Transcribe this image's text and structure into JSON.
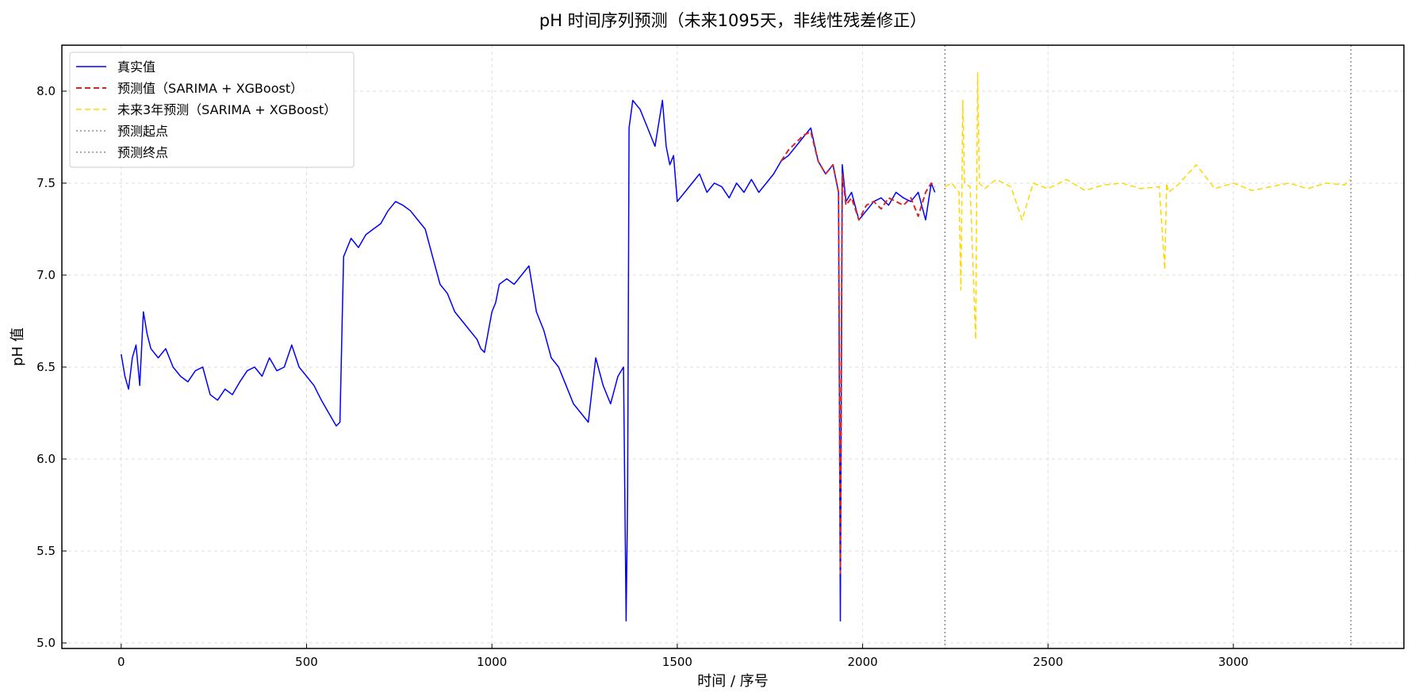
{
  "chart_data": {
    "type": "line",
    "title": "pH 时间序列预测（未来1095天，非线性残差修正）",
    "xlabel": "时间 / 序号",
    "ylabel": "pH 值",
    "xlim": [
      -160,
      3460
    ],
    "ylim": [
      4.97,
      8.25
    ],
    "xticks": [
      0,
      500,
      1000,
      1500,
      2000,
      2500,
      3000
    ],
    "yticks": [
      5.0,
      5.5,
      6.0,
      6.5,
      7.0,
      7.5,
      8.0
    ],
    "xtick_labels": [
      "0",
      "500",
      "1000",
      "1500",
      "2000",
      "2500",
      "3000"
    ],
    "ytick_labels": [
      "5.0",
      "5.5",
      "6.0",
      "6.5",
      "7.0",
      "7.5",
      "8.0"
    ],
    "grid": true,
    "legend_position": "upper-left",
    "series": [
      {
        "name": "真实值",
        "color": "#0000ff",
        "style": "solid",
        "x": [
          0,
          10,
          20,
          30,
          40,
          50,
          60,
          70,
          80,
          100,
          120,
          140,
          160,
          180,
          200,
          220,
          240,
          260,
          280,
          300,
          320,
          340,
          360,
          380,
          400,
          420,
          440,
          460,
          480,
          500,
          520,
          540,
          560,
          580,
          590,
          600,
          620,
          640,
          660,
          680,
          700,
          720,
          740,
          760,
          780,
          800,
          820,
          840,
          860,
          880,
          900,
          920,
          940,
          960,
          970,
          980,
          1000,
          1010,
          1020,
          1040,
          1060,
          1080,
          1100,
          1120,
          1140,
          1160,
          1180,
          1200,
          1220,
          1240,
          1260,
          1280,
          1300,
          1320,
          1340,
          1355,
          1362,
          1366,
          1370,
          1380,
          1400,
          1420,
          1440,
          1460,
          1470,
          1480,
          1490,
          1500,
          1520,
          1540,
          1560,
          1580,
          1600,
          1620,
          1640,
          1660,
          1680,
          1700,
          1720,
          1740,
          1760,
          1780,
          1800,
          1820,
          1840,
          1860,
          1880,
          1900,
          1920,
          1935,
          1940,
          1945,
          1955,
          1970,
          1990,
          2010,
          2030,
          2050,
          2070,
          2090,
          2110,
          2130,
          2150,
          2170,
          2185,
          2195
        ],
        "y": [
          6.57,
          6.45,
          6.38,
          6.55,
          6.62,
          6.4,
          6.8,
          6.68,
          6.6,
          6.55,
          6.6,
          6.5,
          6.45,
          6.42,
          6.48,
          6.5,
          6.35,
          6.32,
          6.38,
          6.35,
          6.42,
          6.48,
          6.5,
          6.45,
          6.55,
          6.48,
          6.5,
          6.62,
          6.5,
          6.45,
          6.4,
          6.32,
          6.25,
          6.18,
          6.2,
          7.1,
          7.2,
          7.15,
          7.22,
          7.25,
          7.28,
          7.35,
          7.4,
          7.38,
          7.35,
          7.3,
          7.25,
          7.1,
          6.95,
          6.9,
          6.8,
          6.75,
          6.7,
          6.65,
          6.6,
          6.58,
          6.8,
          6.85,
          6.95,
          6.98,
          6.95,
          7.0,
          7.05,
          6.8,
          6.7,
          6.55,
          6.5,
          6.4,
          6.3,
          6.25,
          6.2,
          6.55,
          6.4,
          6.3,
          6.45,
          6.5,
          5.12,
          5.8,
          7.8,
          7.95,
          7.9,
          7.8,
          7.7,
          7.95,
          7.7,
          7.6,
          7.65,
          7.4,
          7.45,
          7.5,
          7.55,
          7.45,
          7.5,
          7.48,
          7.42,
          7.5,
          7.45,
          7.52,
          7.45,
          7.5,
          7.55,
          7.62,
          7.65,
          7.7,
          7.75,
          7.8,
          7.62,
          7.55,
          7.6,
          7.45,
          5.12,
          7.6,
          7.4,
          7.45,
          7.3,
          7.35,
          7.4,
          7.42,
          7.38,
          7.45,
          7.42,
          7.4,
          7.45,
          7.3,
          7.5,
          7.45
        ]
      },
      {
        "name": "预测值（SARIMA + XGBoost）",
        "color": "#d62728",
        "style": "dashed",
        "x": [
          1780,
          1800,
          1820,
          1840,
          1860,
          1880,
          1900,
          1920,
          1935,
          1940,
          1945,
          1955,
          1970,
          1990,
          2010,
          2030,
          2050,
          2070,
          2090,
          2110,
          2130,
          2150,
          2170,
          2185,
          2195
        ],
        "y": [
          7.62,
          7.68,
          7.72,
          7.76,
          7.78,
          7.62,
          7.55,
          7.6,
          7.45,
          5.38,
          7.55,
          7.38,
          7.42,
          7.3,
          7.38,
          7.4,
          7.36,
          7.42,
          7.4,
          7.38,
          7.42,
          7.32,
          7.45,
          7.5,
          7.48
        ]
      },
      {
        "name": "未来3年预测（SARIMA + XGBoost）",
        "color": "#ffd700",
        "style": "dashed",
        "x": [
          2222,
          2240,
          2260,
          2265,
          2270,
          2275,
          2290,
          2305,
          2310,
          2315,
          2330,
          2360,
          2400,
          2430,
          2460,
          2500,
          2550,
          2600,
          2650,
          2700,
          2750,
          2800,
          2815,
          2820,
          2825,
          2850,
          2900,
          2950,
          3000,
          3050,
          3100,
          3150,
          3200,
          3250,
          3300,
          3315
        ],
        "y": [
          7.48,
          7.5,
          7.45,
          6.92,
          7.95,
          7.5,
          7.48,
          6.65,
          8.1,
          7.5,
          7.47,
          7.52,
          7.48,
          7.3,
          7.5,
          7.47,
          7.52,
          7.46,
          7.49,
          7.5,
          7.47,
          7.48,
          7.03,
          7.5,
          7.45,
          7.49,
          7.6,
          7.47,
          7.5,
          7.46,
          7.48,
          7.5,
          7.47,
          7.5,
          7.49,
          7.52
        ]
      }
    ],
    "vlines": [
      {
        "name": "预测起点",
        "x": 2222,
        "color": "#777777",
        "style": "dotted"
      },
      {
        "name": "预测终点",
        "x": 3317,
        "color": "#777777",
        "style": "dotted"
      }
    ]
  }
}
